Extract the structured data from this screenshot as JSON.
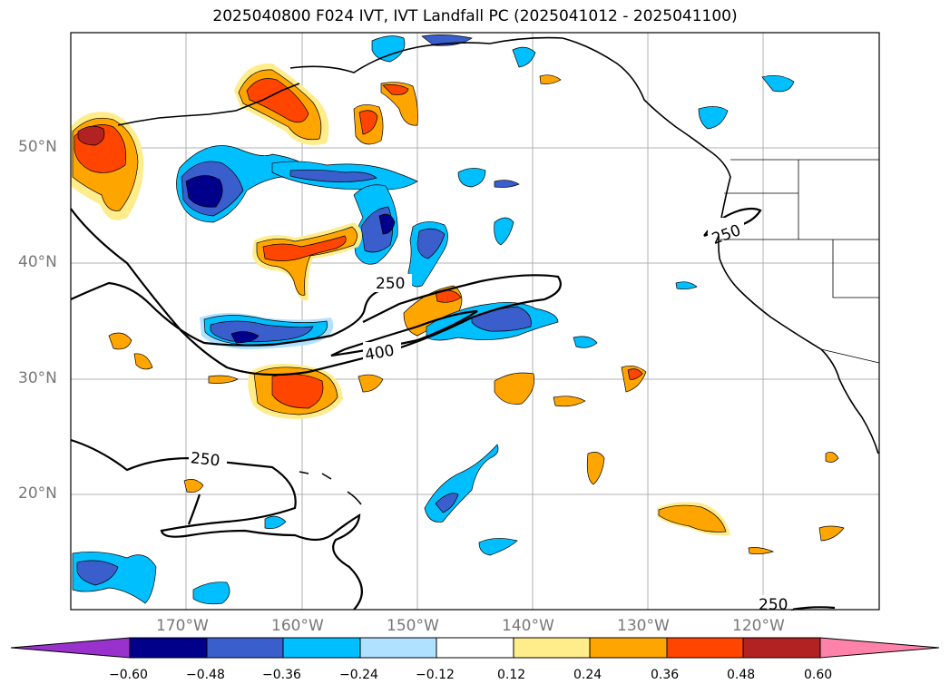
{
  "title": "2025040800 F024 IVT, IVT Landfall PC (2025041012 - 2025041100)",
  "map": {
    "lon_range": [
      -180,
      -110
    ],
    "lat_range": [
      10,
      60
    ],
    "lat_labels": [
      "50°N",
      "40°N",
      "30°N",
      "20°N"
    ],
    "lon_labels": [
      "170°W",
      "160°W",
      "150°W",
      "140°W",
      "130°W",
      "120°W"
    ],
    "grid": true
  },
  "ivt_contours": [
    {
      "label": "250"
    },
    {
      "label": "400"
    },
    {
      "label": "250"
    },
    {
      "label": "250"
    },
    {
      "label": "250"
    }
  ],
  "colorbar": {
    "ticks": [
      "−0.60",
      "−0.48",
      "−0.36",
      "−0.24",
      "−0.12",
      "0.12",
      "0.24",
      "0.36",
      "0.48",
      "0.60"
    ],
    "colors": [
      "#9932cc",
      "#00008b",
      "#3a5fcd",
      "#00bfff",
      "#b0e2ff",
      "#ffffff",
      "#ffec8b",
      "#ffa500",
      "#ff4500",
      "#b22222",
      "#ff82ab"
    ],
    "extend": "both"
  }
}
